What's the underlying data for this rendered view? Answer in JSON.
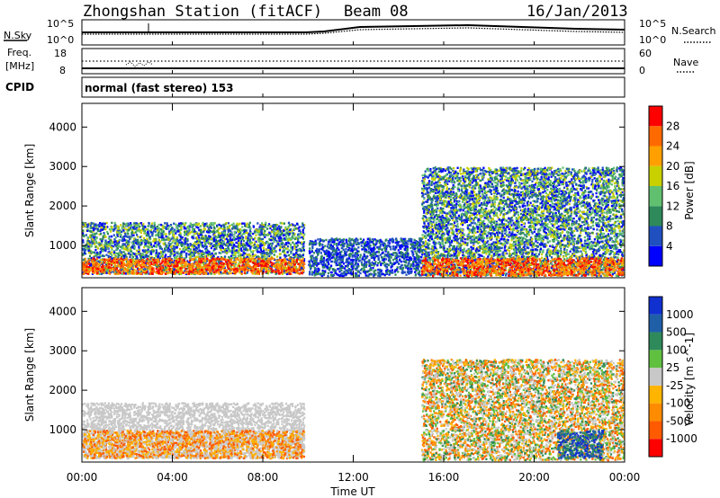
{
  "header": {
    "title": "Zhongshan Station (fitACF)",
    "beam": "Beam 08",
    "date": "16/Jan/2013"
  },
  "strip_labels": {
    "nsky": "N.Sky",
    "nsky_ticks": [
      "10^5",
      "10^0"
    ],
    "nsearch": "N.Search",
    "nsearch_ticks": [
      "10^5",
      "10^0"
    ],
    "freq": "Freq.",
    "freq_unit": "[MHz]",
    "freq_ticks": [
      "18",
      "8"
    ],
    "nave": "Nave",
    "nave_ticks": [
      "60",
      "0"
    ],
    "cpid": "CPID",
    "cpid_value": "normal (fast stereo) 153"
  },
  "colors": {
    "velocity_scale": [
      "#ff0000",
      "#ff5a00",
      "#ff8c00",
      "#ffb400",
      "#c8c8c8",
      "#60c040",
      "#2e8a5a",
      "#1f5fa8",
      "#1030d0"
    ],
    "power_scale": [
      "#0000ff",
      "#2050c0",
      "#2e8a5a",
      "#60c070",
      "#c8d000",
      "#ffa000",
      "#ff6a00",
      "#ff0000"
    ]
  },
  "chart_data": [
    {
      "type": "heatmap",
      "title": "Power",
      "ylabel": "Slant Range [km]",
      "ylim": [
        180,
        4600
      ],
      "yticks": [
        "1000",
        "2000",
        "3000",
        "4000"
      ],
      "colorbar_label": "Power [dB]",
      "colorbar_ticks": [
        "4",
        "8",
        "12",
        "16",
        "20",
        "24",
        "28"
      ],
      "regions": [
        {
          "t0": 0.0,
          "t1": 9.8,
          "r0": 300,
          "r1": 1600,
          "level": "medium",
          "value_db": 12
        },
        {
          "t0": 0.0,
          "t1": 9.8,
          "r0": 300,
          "r1": 700,
          "level": "high",
          "value_db": 24
        },
        {
          "t0": 10.0,
          "t1": 15.0,
          "r0": 250,
          "r1": 1200,
          "level": "low",
          "value_db": 8
        },
        {
          "t0": 15.0,
          "t1": 24.0,
          "r0": 250,
          "r1": 3000,
          "level": "medium",
          "value_db": 12
        },
        {
          "t0": 15.0,
          "t1": 24.0,
          "r0": 250,
          "r1": 700,
          "level": "high",
          "value_db": 26
        }
      ]
    },
    {
      "type": "heatmap",
      "title": "Velocity",
      "ylabel": "Slant Range [km]",
      "ylim": [
        180,
        4600
      ],
      "yticks": [
        "1000",
        "2000",
        "3000",
        "4000"
      ],
      "colorbar_label": "Velocity [m s^-1]",
      "colorbar_ticks": [
        "1000",
        "500",
        "100",
        "25",
        "-25",
        "-100",
        "-500",
        "-1000"
      ],
      "regions": [
        {
          "t0": 0.0,
          "t1": 9.8,
          "r0": 300,
          "r1": 1700,
          "level": "ground",
          "value_ms": 0
        },
        {
          "t0": 0.0,
          "t1": 9.8,
          "r0": 300,
          "r1": 1000,
          "level": "away",
          "value_ms": -100
        },
        {
          "t0": 15.0,
          "t1": 24.0,
          "r0": 250,
          "r1": 2800,
          "level": "mixed",
          "value_ms": -100
        },
        {
          "t0": 21.0,
          "t1": 23.0,
          "r0": 300,
          "r1": 1000,
          "level": "toward",
          "value_ms": 500
        }
      ]
    }
  ],
  "xaxis": {
    "label": "Time UT",
    "ticks": [
      "00:00",
      "04:00",
      "08:00",
      "12:00",
      "16:00",
      "20:00",
      "00:00"
    ]
  }
}
